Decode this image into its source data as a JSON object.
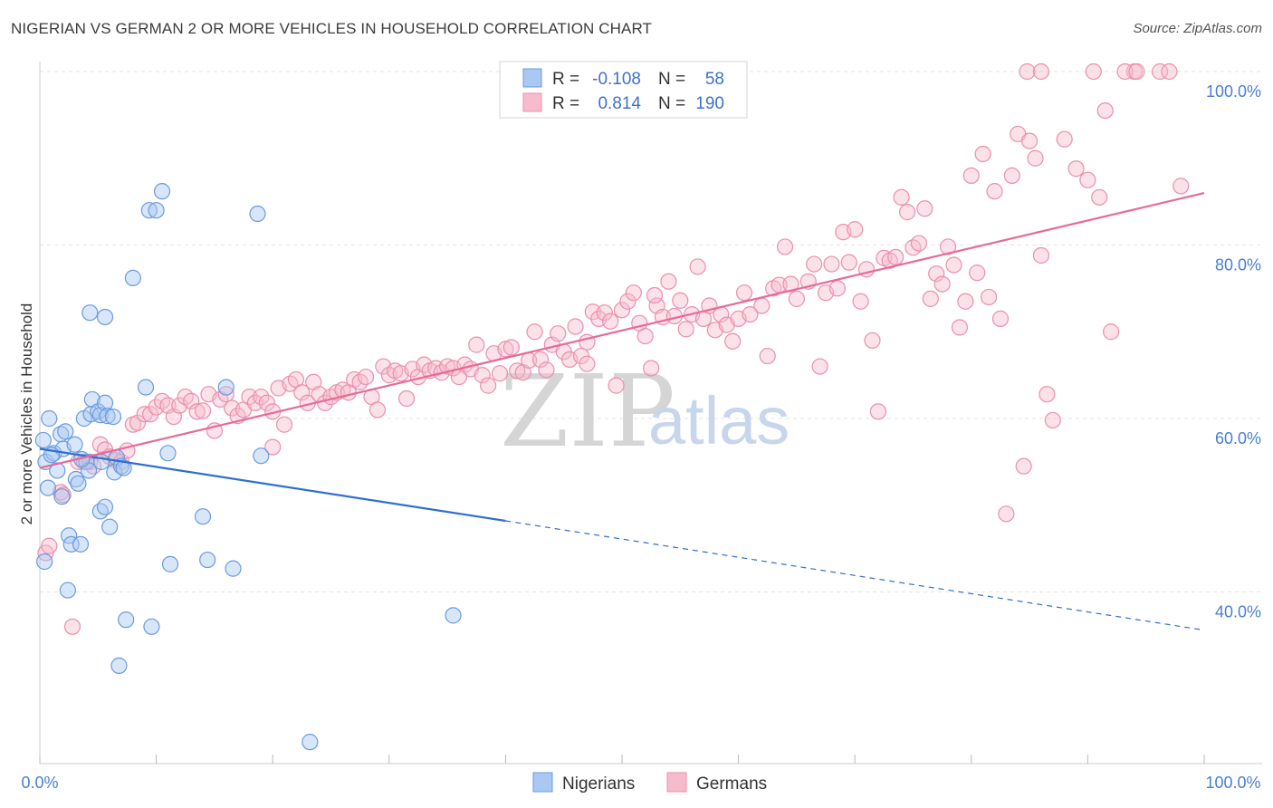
{
  "header": {
    "title": "NIGERIAN VS GERMAN 2 OR MORE VEHICLES IN HOUSEHOLD CORRELATION CHART",
    "source": "Source: ZipAtlas.com"
  },
  "colors": {
    "nigerian_fill": "#a9c8f2",
    "nigerian_stroke": "#6a9be0",
    "nigerian_line": "#2f6fd0",
    "german_fill": "#f6bccd",
    "german_stroke": "#eb8fae",
    "german_line": "#e56b98",
    "grid": "#e3e3e3",
    "axis_text": "#4a7fd0"
  },
  "legend": {
    "row1": {
      "r_label": "R =",
      "r_value": "-0.108",
      "n_label": "N =",
      "n_value": "58"
    },
    "row2": {
      "r_label": "R =",
      "r_value": "0.814",
      "n_label": "N =",
      "n_value": "190"
    }
  },
  "watermark": {
    "zip": "ZIP",
    "atlas": "atlas"
  },
  "chart_data": {
    "type": "scatter",
    "title": "NIGERIAN VS GERMAN 2 OR MORE VEHICLES IN HOUSEHOLD CORRELATION CHART",
    "xlabel": "",
    "ylabel": "2 or more Vehicles in Household",
    "xlim": [
      0,
      100
    ],
    "ylim": [
      20,
      102
    ],
    "x_tick_labels": [
      "0.0%",
      "100.0%"
    ],
    "y_ticks": [
      40,
      60,
      80,
      100
    ],
    "y_tick_labels": [
      "40.0%",
      "60.0%",
      "80.0%",
      "100.0%"
    ],
    "legend_position": "top-center",
    "series": [
      {
        "name": "Nigerians",
        "r": -0.108,
        "n": 58,
        "trend": {
          "x0": 0,
          "y0": 56.5,
          "x1": 40,
          "y1": 48.2,
          "dashed_to_x": 100,
          "dashed_to_y": 35.6
        },
        "points": [
          [
            0.3,
            57.5
          ],
          [
            0.5,
            55.0
          ],
          [
            0.7,
            52.0
          ],
          [
            0.4,
            43.5
          ],
          [
            1.2,
            56.0
          ],
          [
            1.5,
            54.0
          ],
          [
            1.8,
            58.2
          ],
          [
            2.0,
            56.5
          ],
          [
            2.2,
            58.5
          ],
          [
            1.9,
            51.0
          ],
          [
            3.0,
            57.0
          ],
          [
            3.1,
            53.0
          ],
          [
            3.3,
            52.5
          ],
          [
            2.5,
            46.5
          ],
          [
            2.7,
            45.5
          ],
          [
            2.4,
            40.2
          ],
          [
            3.5,
            45.5
          ],
          [
            3.8,
            60.0
          ],
          [
            4.0,
            55.0
          ],
          [
            4.2,
            54.0
          ],
          [
            4.5,
            62.2
          ],
          [
            4.4,
            60.5
          ],
          [
            5.0,
            60.8
          ],
          [
            5.2,
            60.4
          ],
          [
            5.6,
            61.8
          ],
          [
            5.8,
            60.3
          ],
          [
            6.3,
            60.2
          ],
          [
            6.6,
            55.5
          ],
          [
            6.4,
            53.8
          ],
          [
            7.0,
            54.5
          ],
          [
            7.2,
            54.3
          ],
          [
            5.2,
            49.3
          ],
          [
            5.6,
            49.8
          ],
          [
            6.0,
            47.5
          ],
          [
            4.3,
            72.2
          ],
          [
            5.6,
            71.7
          ],
          [
            8.0,
            76.2
          ],
          [
            9.1,
            63.6
          ],
          [
            9.4,
            84.0
          ],
          [
            10.0,
            84.0
          ],
          [
            10.5,
            86.2
          ],
          [
            18.7,
            83.6
          ],
          [
            11.0,
            56.0
          ],
          [
            11.2,
            43.2
          ],
          [
            14.0,
            48.7
          ],
          [
            14.4,
            43.7
          ],
          [
            16.6,
            42.7
          ],
          [
            19.0,
            55.7
          ],
          [
            16.0,
            63.6
          ],
          [
            7.4,
            36.8
          ],
          [
            9.6,
            36.0
          ],
          [
            6.8,
            31.5
          ],
          [
            23.2,
            22.7
          ],
          [
            35.5,
            37.3
          ],
          [
            1.0,
            55.8
          ],
          [
            0.8,
            60.0
          ],
          [
            5.3,
            55.0
          ],
          [
            3.6,
            55.3
          ]
        ]
      },
      {
        "name": "Germans",
        "r": 0.814,
        "n": 190,
        "trend": {
          "x0": 0,
          "y0": 54.3,
          "x1": 100,
          "y1": 86.0
        },
        "points": [
          [
            0.5,
            44.5
          ],
          [
            0.8,
            45.3
          ],
          [
            1.8,
            51.5
          ],
          [
            2.0,
            51.2
          ],
          [
            2.8,
            36.0
          ],
          [
            3.3,
            55.0
          ],
          [
            3.8,
            55.0
          ],
          [
            4.3,
            55.0
          ],
          [
            4.6,
            54.5
          ],
          [
            5.2,
            57.0
          ],
          [
            5.6,
            56.4
          ],
          [
            6.0,
            55.6
          ],
          [
            6.5,
            55.2
          ],
          [
            7.0,
            55.0
          ],
          [
            7.5,
            56.3
          ],
          [
            8.0,
            59.3
          ],
          [
            8.4,
            59.5
          ],
          [
            9.0,
            60.5
          ],
          [
            9.5,
            60.5
          ],
          [
            10.0,
            61.3
          ],
          [
            10.5,
            62.0
          ],
          [
            11.0,
            61.5
          ],
          [
            11.5,
            60.2
          ],
          [
            12.0,
            61.5
          ],
          [
            12.5,
            62.5
          ],
          [
            13.0,
            62.0
          ],
          [
            13.5,
            60.8
          ],
          [
            14.0,
            60.9
          ],
          [
            14.5,
            62.8
          ],
          [
            15.0,
            58.6
          ],
          [
            15.5,
            62.2
          ],
          [
            16.0,
            62.8
          ],
          [
            16.5,
            61.2
          ],
          [
            17.0,
            60.3
          ],
          [
            17.5,
            61.0
          ],
          [
            18.0,
            62.5
          ],
          [
            18.5,
            61.8
          ],
          [
            19.0,
            62.5
          ],
          [
            19.5,
            61.8
          ],
          [
            20.0,
            60.8
          ],
          [
            20.5,
            63.5
          ],
          [
            21.0,
            59.3
          ],
          [
            21.5,
            64.0
          ],
          [
            22.0,
            64.5
          ],
          [
            22.5,
            63.0
          ],
          [
            23.0,
            61.8
          ],
          [
            23.5,
            64.2
          ],
          [
            24.0,
            62.8
          ],
          [
            24.5,
            61.8
          ],
          [
            25.0,
            62.5
          ],
          [
            25.5,
            63.0
          ],
          [
            26.0,
            63.3
          ],
          [
            26.5,
            63.0
          ],
          [
            27.0,
            64.5
          ],
          [
            27.5,
            64.2
          ],
          [
            28.0,
            64.8
          ],
          [
            28.5,
            62.5
          ],
          [
            29.0,
            61.0
          ],
          [
            29.5,
            66.0
          ],
          [
            30.0,
            65.0
          ],
          [
            30.5,
            65.5
          ],
          [
            31.0,
            65.2
          ],
          [
            31.5,
            62.3
          ],
          [
            32.0,
            65.7
          ],
          [
            32.5,
            64.8
          ],
          [
            33.0,
            66.2
          ],
          [
            33.5,
            65.5
          ],
          [
            34.0,
            65.8
          ],
          [
            34.5,
            65.3
          ],
          [
            35.0,
            66.0
          ],
          [
            35.5,
            65.8
          ],
          [
            36.0,
            64.8
          ],
          [
            36.5,
            66.2
          ],
          [
            37.0,
            65.7
          ],
          [
            37.5,
            68.5
          ],
          [
            38.0,
            65.0
          ],
          [
            38.5,
            63.8
          ],
          [
            39.0,
            67.5
          ],
          [
            39.5,
            65.2
          ],
          [
            40.0,
            68.0
          ],
          [
            40.5,
            68.2
          ],
          [
            41.0,
            65.5
          ],
          [
            41.5,
            65.3
          ],
          [
            42.0,
            66.7
          ],
          [
            42.5,
            70.0
          ],
          [
            43.0,
            66.8
          ],
          [
            43.5,
            65.6
          ],
          [
            44.0,
            68.5
          ],
          [
            44.5,
            69.8
          ],
          [
            45.0,
            67.7
          ],
          [
            45.5,
            66.8
          ],
          [
            46.0,
            70.6
          ],
          [
            46.5,
            67.2
          ],
          [
            47.0,
            68.8
          ],
          [
            47.5,
            72.3
          ],
          [
            48.0,
            71.5
          ],
          [
            48.5,
            72.2
          ],
          [
            49.0,
            71.2
          ],
          [
            49.5,
            63.8
          ],
          [
            50.0,
            72.5
          ],
          [
            50.5,
            73.5
          ],
          [
            51.0,
            74.5
          ],
          [
            51.5,
            71.0
          ],
          [
            52.0,
            69.5
          ],
          [
            52.5,
            65.8
          ],
          [
            53.0,
            73.0
          ],
          [
            53.5,
            71.7
          ],
          [
            54.0,
            75.8
          ],
          [
            54.5,
            71.8
          ],
          [
            55.0,
            73.6
          ],
          [
            55.5,
            70.3
          ],
          [
            56.0,
            72.0
          ],
          [
            56.5,
            77.5
          ],
          [
            57.0,
            71.5
          ],
          [
            57.5,
            73.0
          ],
          [
            58.0,
            70.2
          ],
          [
            58.5,
            72.0
          ],
          [
            59.0,
            70.8
          ],
          [
            59.5,
            68.9
          ],
          [
            60.0,
            71.5
          ],
          [
            60.5,
            74.5
          ],
          [
            61.0,
            72.0
          ],
          [
            62.0,
            73.0
          ],
          [
            62.5,
            67.2
          ],
          [
            63.0,
            75.0
          ],
          [
            63.5,
            75.4
          ],
          [
            64.0,
            79.8
          ],
          [
            64.5,
            75.5
          ],
          [
            65.0,
            73.8
          ],
          [
            66.0,
            75.8
          ],
          [
            66.5,
            77.8
          ],
          [
            67.0,
            66.0
          ],
          [
            67.5,
            74.5
          ],
          [
            68.0,
            77.8
          ],
          [
            68.5,
            75.0
          ],
          [
            69.0,
            81.5
          ],
          [
            69.5,
            78.0
          ],
          [
            70.0,
            81.8
          ],
          [
            70.5,
            73.5
          ],
          [
            71.0,
            77.2
          ],
          [
            71.5,
            69.0
          ],
          [
            72.0,
            60.8
          ],
          [
            72.5,
            78.5
          ],
          [
            73.0,
            78.2
          ],
          [
            73.5,
            78.6
          ],
          [
            74.0,
            85.5
          ],
          [
            74.5,
            83.8
          ],
          [
            75.0,
            79.7
          ],
          [
            75.5,
            80.2
          ],
          [
            76.0,
            84.2
          ],
          [
            76.5,
            73.8
          ],
          [
            77.0,
            76.7
          ],
          [
            77.5,
            75.5
          ],
          [
            78.0,
            79.8
          ],
          [
            78.5,
            77.7
          ],
          [
            79.0,
            70.5
          ],
          [
            79.5,
            73.5
          ],
          [
            80.0,
            88.0
          ],
          [
            80.5,
            76.8
          ],
          [
            81.0,
            90.5
          ],
          [
            81.5,
            74.0
          ],
          [
            82.0,
            86.2
          ],
          [
            82.5,
            71.5
          ],
          [
            83.0,
            49.0
          ],
          [
            83.5,
            88.0
          ],
          [
            84.0,
            92.8
          ],
          [
            84.5,
            54.5
          ],
          [
            85.0,
            92.0
          ],
          [
            85.5,
            90.0
          ],
          [
            86.0,
            78.8
          ],
          [
            86.5,
            62.8
          ],
          [
            87.0,
            59.8
          ],
          [
            88.0,
            92.2
          ],
          [
            89.0,
            88.8
          ],
          [
            90.0,
            87.5
          ],
          [
            91.0,
            85.5
          ],
          [
            91.5,
            95.5
          ],
          [
            92.0,
            70.0
          ],
          [
            94.0,
            100.0
          ],
          [
            98.0,
            86.8
          ],
          [
            84.8,
            100.0
          ],
          [
            86.0,
            100.0
          ],
          [
            90.5,
            100.0
          ],
          [
            93.2,
            100.0
          ],
          [
            94.2,
            100.0
          ],
          [
            96.2,
            100.0
          ],
          [
            97.0,
            100.0
          ],
          [
            52.8,
            74.2
          ],
          [
            47.0,
            66.3
          ],
          [
            20.0,
            56.7
          ]
        ]
      }
    ]
  }
}
